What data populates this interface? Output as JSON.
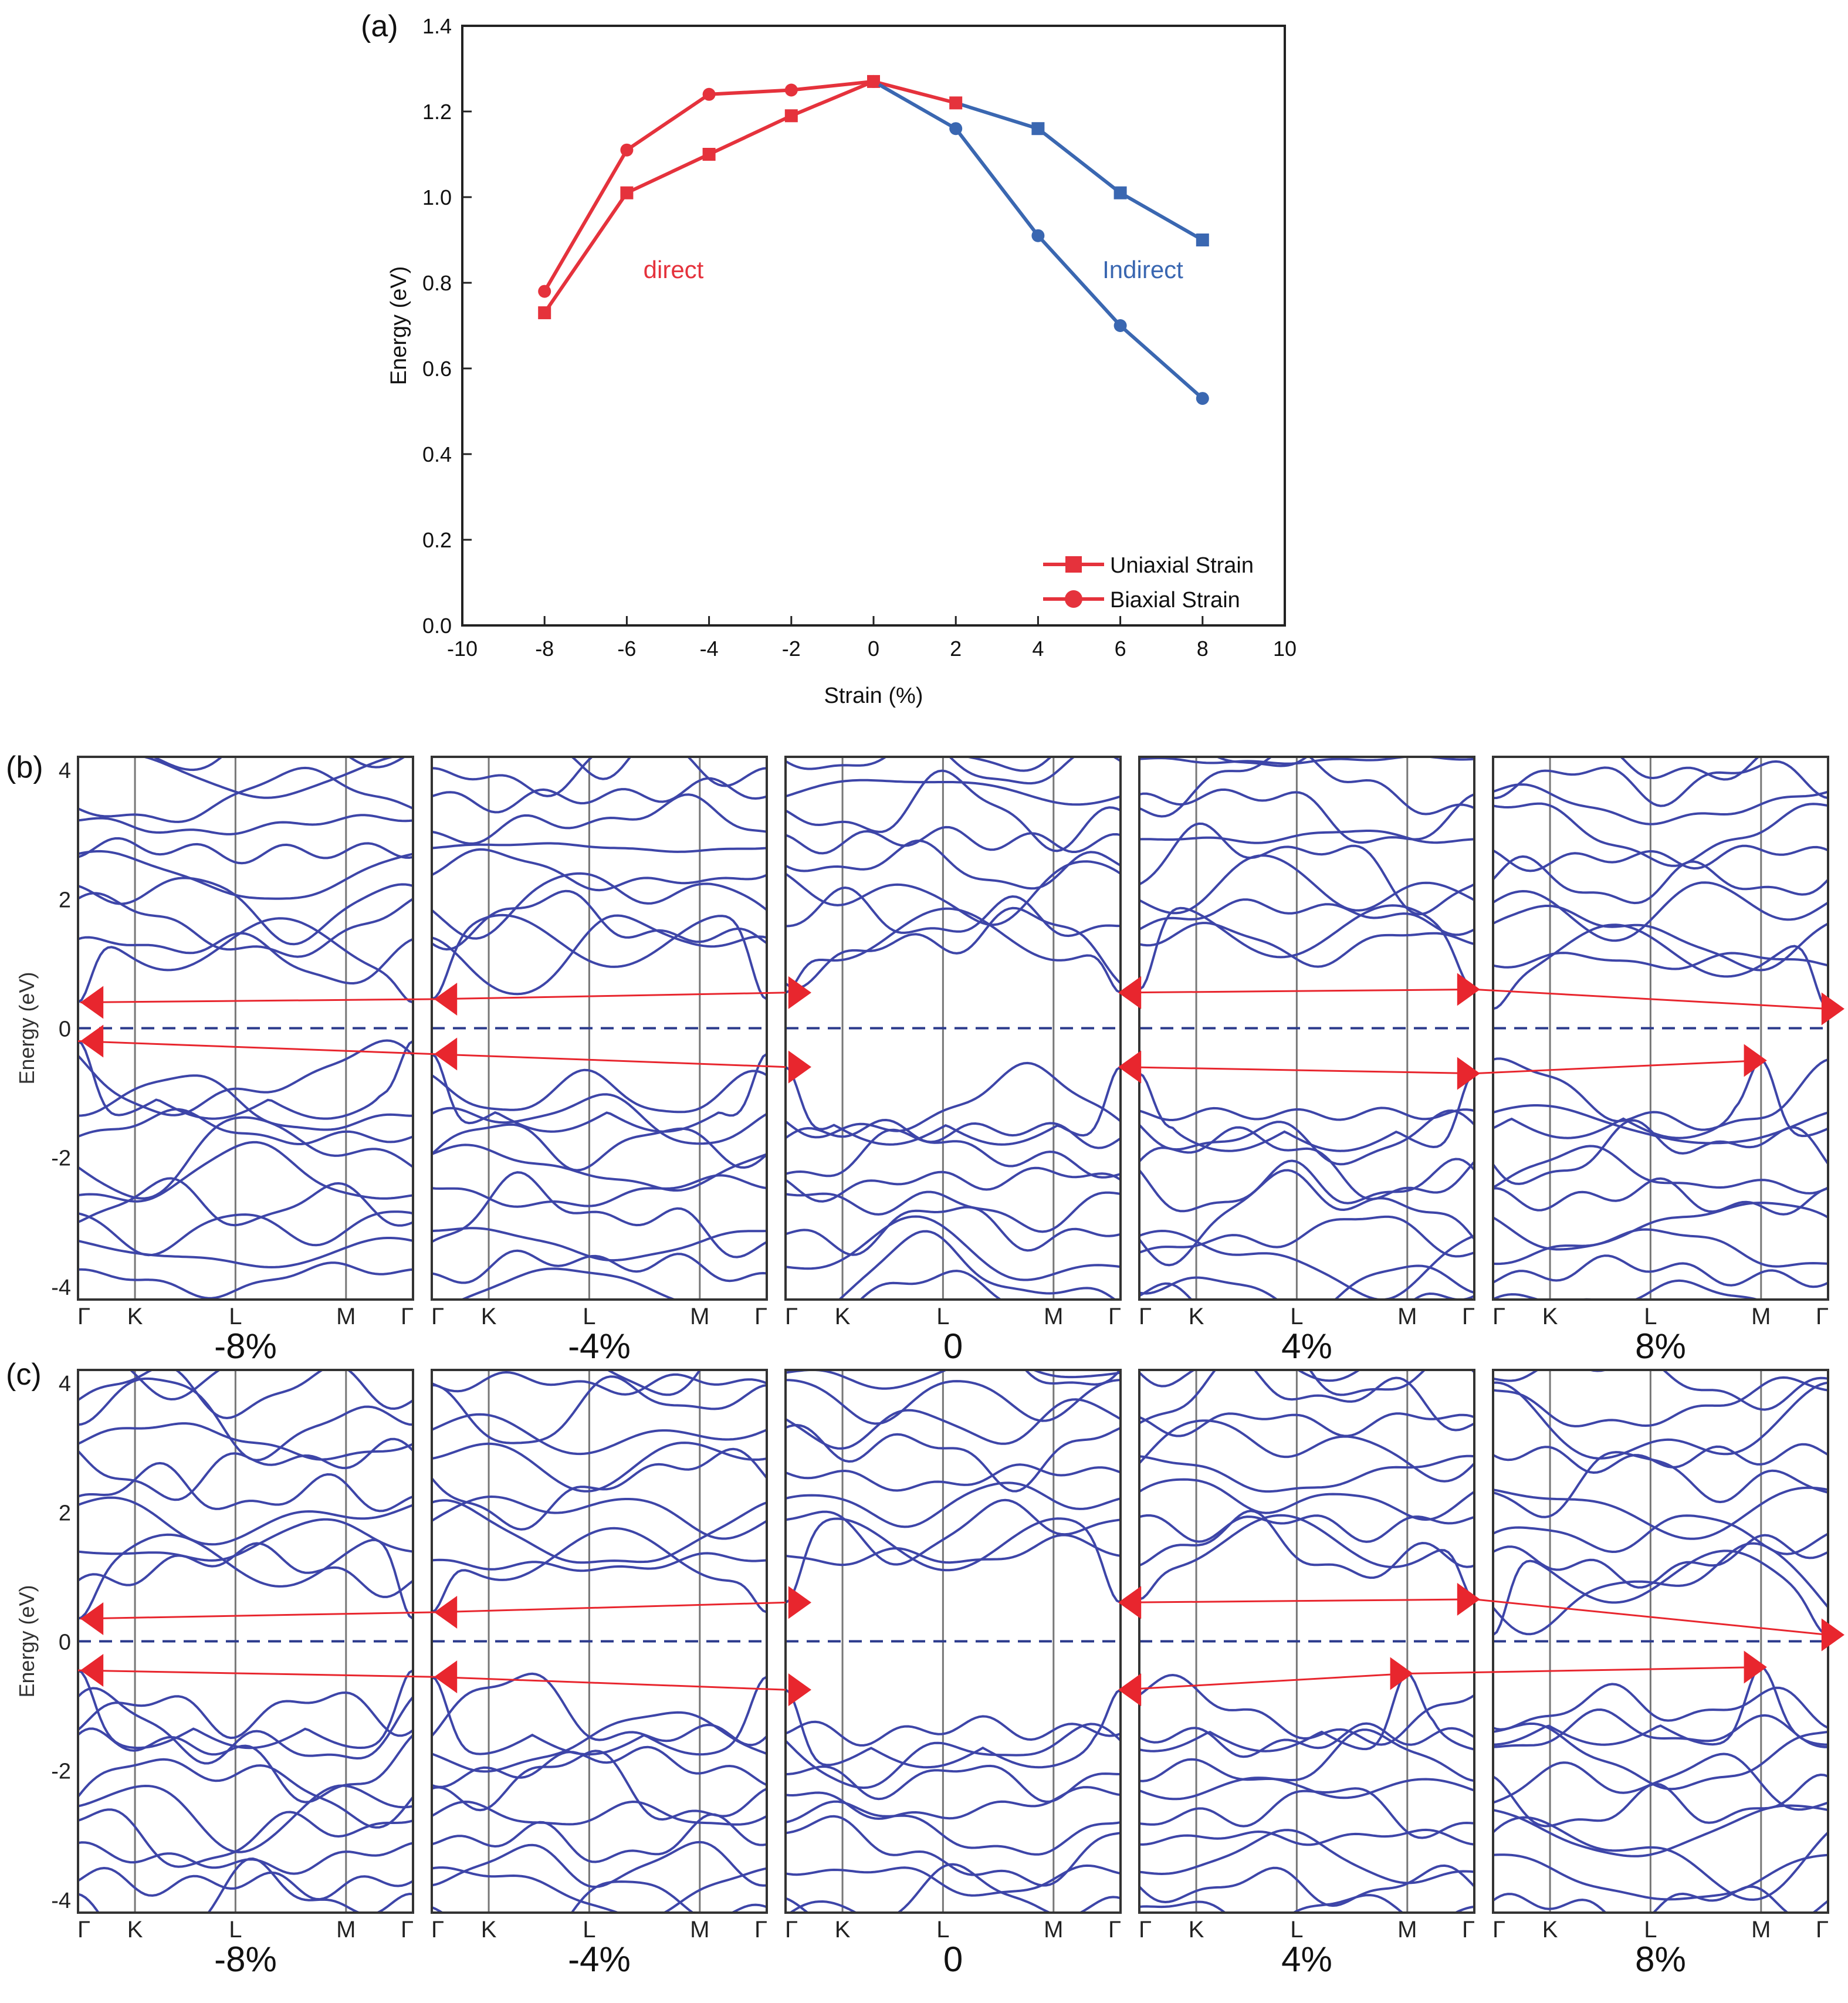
{
  "colors": {
    "direct": "#e5323c",
    "indirect": "#3a67b1",
    "band": "#3d45a8",
    "arrow": "#e8262e",
    "fermi": "#2b3a8c"
  },
  "panel_a": {
    "label": "(a)",
    "direct_label": "direct",
    "indirect_label": "Indirect"
  },
  "panel_b": {
    "label": "(b)"
  },
  "panel_c": {
    "label": "(c)"
  },
  "band_axis": {
    "ylabel": "Energy (eV)",
    "yticks": [
      "4",
      "2",
      "0",
      "-2",
      "-4"
    ],
    "kpoints": [
      "Γ",
      "K",
      "L",
      "M",
      "Γ"
    ],
    "strains": [
      "-8%",
      "-4%",
      "0",
      "4%",
      "8%"
    ]
  },
  "chart_data": [
    {
      "type": "line",
      "xlabel": "Strain (%)",
      "ylabel": "Energy (eV)",
      "xlim": [
        -10,
        10
      ],
      "ylim": [
        0,
        1.4
      ],
      "xticks": [
        -10,
        -8,
        -6,
        -4,
        -2,
        0,
        2,
        4,
        6,
        8,
        10
      ],
      "yticks": [
        0.0,
        0.2,
        0.4,
        0.6,
        0.8,
        1.0,
        1.2,
        1.4
      ],
      "legend_position": "bottom-right",
      "series": [
        {
          "name": "Uniaxial Strain",
          "marker": "square",
          "x": [
            -8,
            -6,
            -4,
            -2,
            0,
            2,
            4,
            6,
            8
          ],
          "y": [
            0.73,
            1.01,
            1.1,
            1.19,
            1.27,
            1.22,
            1.16,
            1.01,
            0.9
          ],
          "gap_type": [
            "direct",
            "direct",
            "direct",
            "direct",
            "direct",
            "direct",
            "indirect",
            "indirect",
            "indirect"
          ]
        },
        {
          "name": "Biaxial Strain",
          "marker": "circle",
          "x": [
            -8,
            -6,
            -4,
            -2,
            0,
            2,
            4,
            6,
            8
          ],
          "y": [
            0.78,
            1.11,
            1.24,
            1.25,
            1.27,
            1.16,
            0.91,
            0.7,
            0.53
          ],
          "gap_type": [
            "direct",
            "direct",
            "direct",
            "direct",
            "direct",
            "indirect",
            "indirect",
            "indirect",
            "indirect"
          ]
        }
      ]
    },
    {
      "type": "line",
      "panel": "(b)",
      "ylabel": "Energy (eV)",
      "ylim": [
        -4.2,
        4.2
      ],
      "xticks": [
        "Γ",
        "K",
        "L",
        "M",
        "Γ"
      ],
      "panels": [
        "-8%",
        "-4%",
        "0",
        "4%",
        "8%"
      ],
      "cbm": [
        0.4,
        0.45,
        0.55,
        0.6,
        0.3
      ],
      "vbm": [
        -0.2,
        -0.4,
        -0.6,
        -0.7,
        -0.5
      ],
      "cbm_k": [
        "Γ",
        "Γ",
        "Γ",
        "Γ",
        "Γ"
      ],
      "vbm_k": [
        "Γ",
        "Γ",
        "Γ",
        "Γ",
        "M"
      ]
    },
    {
      "type": "line",
      "panel": "(c)",
      "ylabel": "Energy (eV)",
      "ylim": [
        -4.2,
        4.2
      ],
      "xticks": [
        "Γ",
        "K",
        "L",
        "M",
        "Γ"
      ],
      "panels": [
        "-8%",
        "-4%",
        "0",
        "4%",
        "8%"
      ],
      "cbm": [
        0.35,
        0.45,
        0.6,
        0.65,
        0.1
      ],
      "vbm": [
        -0.45,
        -0.55,
        -0.75,
        -0.5,
        -0.4
      ],
      "cbm_k": [
        "Γ",
        "Γ",
        "Γ",
        "Γ",
        "Γ"
      ],
      "vbm_k": [
        "Γ",
        "Γ",
        "Γ",
        "M",
        "M"
      ]
    }
  ]
}
